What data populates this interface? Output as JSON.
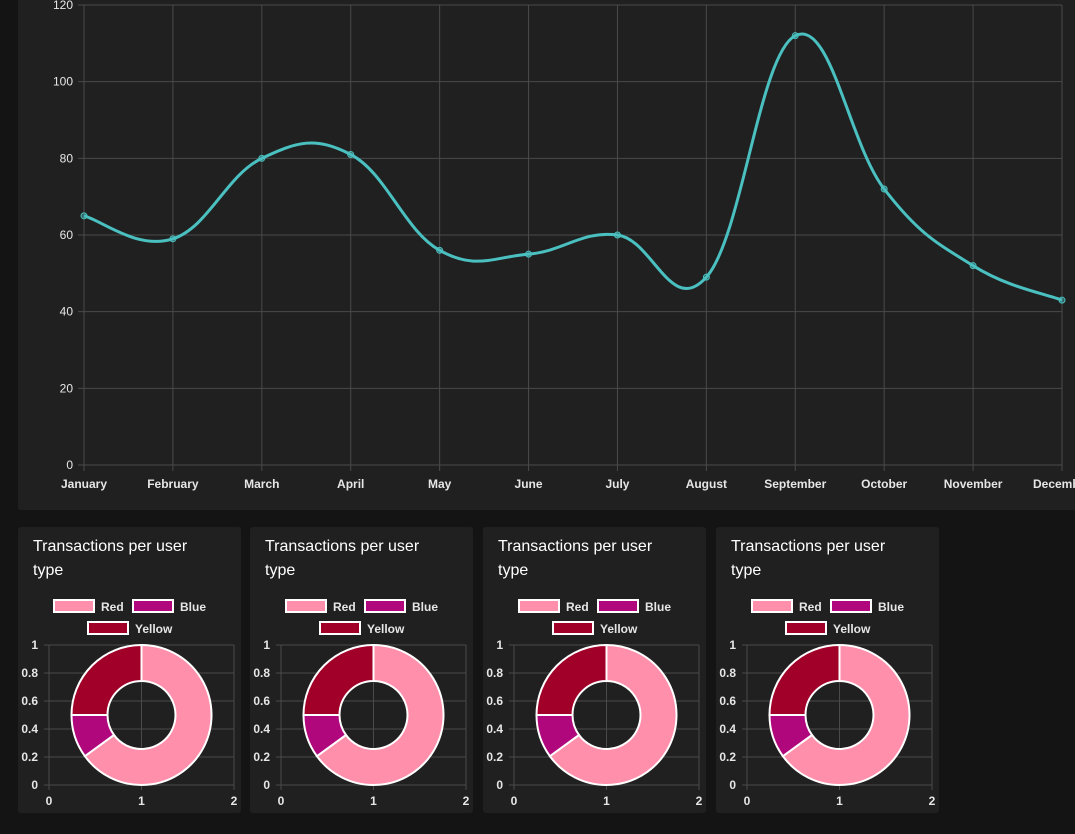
{
  "colors": {
    "line": "#4bc0c0",
    "grid": "#4a4a4a",
    "pie_border": "#ffffff",
    "red": "#ff8fab",
    "blue": "#b0077d",
    "yellow": "#a10029"
  },
  "chart_data": [
    {
      "type": "line",
      "categories": [
        "January",
        "February",
        "March",
        "April",
        "May",
        "June",
        "July",
        "August",
        "September",
        "October",
        "November",
        "December"
      ],
      "series": [
        {
          "values": [
            65,
            59,
            80,
            81,
            56,
            55,
            60,
            49,
            112,
            72,
            52,
            43
          ]
        }
      ],
      "ylim": [
        0,
        120
      ],
      "yticks": [
        0,
        20,
        40,
        60,
        80,
        100,
        120
      ],
      "grid": true
    },
    {
      "type": "pie",
      "title": [
        "Transactions per user",
        "type"
      ],
      "labels": [
        "Red",
        "Blue",
        "Yellow"
      ],
      "values": [
        65,
        10,
        25
      ],
      "legend": "top",
      "xticks": [
        "0",
        "1",
        "2"
      ],
      "yticks": [
        "0",
        "0.2",
        "0.4",
        "0.6",
        "0.8",
        "1"
      ]
    },
    {
      "type": "pie",
      "title": [
        "Transactions per user",
        "type"
      ],
      "labels": [
        "Red",
        "Blue",
        "Yellow"
      ],
      "values": [
        65,
        10,
        25
      ],
      "legend": "top",
      "xticks": [
        "0",
        "1",
        "2"
      ],
      "yticks": [
        "0",
        "0.2",
        "0.4",
        "0.6",
        "0.8",
        "1"
      ]
    },
    {
      "type": "pie",
      "title": [
        "Transactions per user",
        "type"
      ],
      "labels": [
        "Red",
        "Blue",
        "Yellow"
      ],
      "values": [
        65,
        10,
        25
      ],
      "legend": "top",
      "xticks": [
        "0",
        "1",
        "2"
      ],
      "yticks": [
        "0",
        "0.2",
        "0.4",
        "0.6",
        "0.8",
        "1"
      ]
    },
    {
      "type": "pie",
      "title": [
        "Transactions per user",
        "type"
      ],
      "labels": [
        "Red",
        "Blue",
        "Yellow"
      ],
      "values": [
        65,
        10,
        25
      ],
      "legend": "top",
      "xticks": [
        "0",
        "1",
        "2"
      ],
      "yticks": [
        "0",
        "0.2",
        "0.4",
        "0.6",
        "0.8",
        "1"
      ]
    }
  ]
}
